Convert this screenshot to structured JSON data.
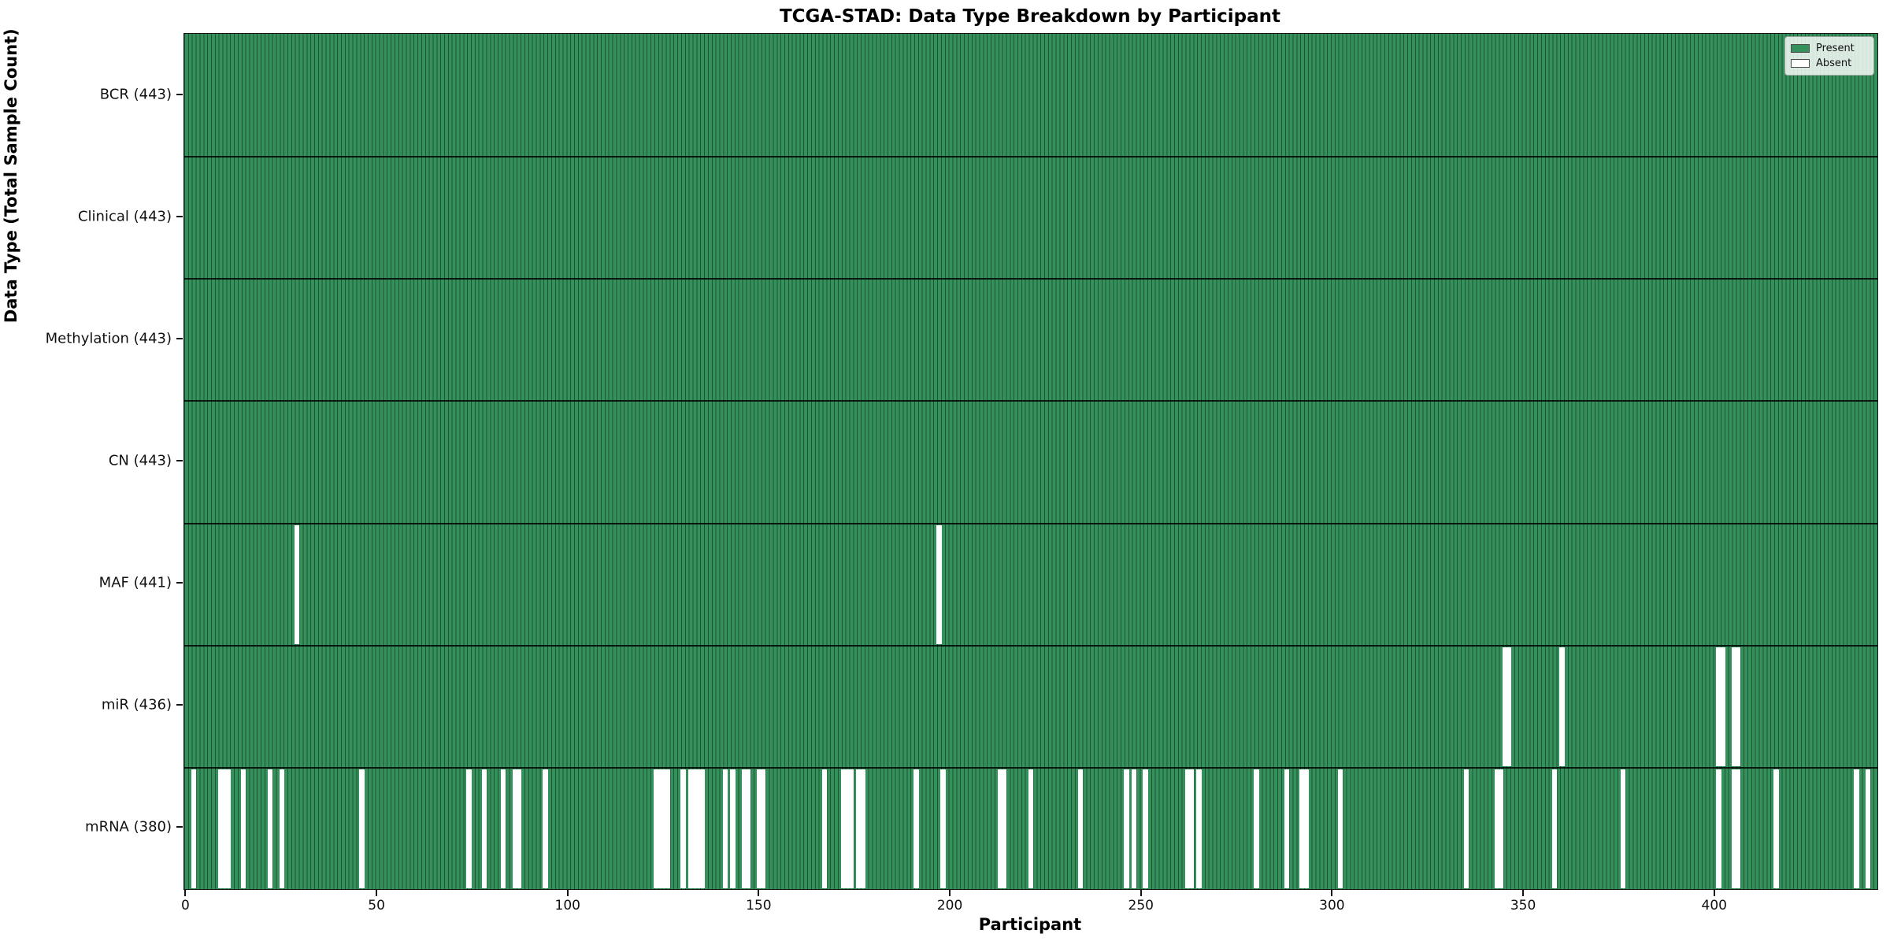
{
  "chart_data": {
    "type": "heatmap",
    "title": "TCGA-STAD: Data Type Breakdown by Participant",
    "xlabel": "Participant",
    "ylabel": "Data Type (Total Sample Count)",
    "n_participants": 443,
    "x_ticks": [
      0,
      50,
      100,
      150,
      200,
      250,
      300,
      350,
      400
    ],
    "legend": {
      "position": "upper-right",
      "entries": [
        {
          "label": "Present",
          "color": "#35915c"
        },
        {
          "label": "Absent",
          "color": "#ffffff"
        }
      ]
    },
    "colors": {
      "present": "#35915c",
      "absent": "#ffffff",
      "cell_edge": "rgba(0,0,0,0.42)",
      "row_separator": "#000000"
    },
    "rows": [
      {
        "name": "BCR",
        "label": "BCR (443)",
        "total": 443,
        "absent": []
      },
      {
        "name": "Clinical",
        "label": "Clinical (443)",
        "total": 443,
        "absent": []
      },
      {
        "name": "Methylation",
        "label": "Methylation (443)",
        "total": 443,
        "absent": []
      },
      {
        "name": "CN",
        "label": "CN (443)",
        "total": 443,
        "absent": []
      },
      {
        "name": "MAF",
        "label": "MAF (441)",
        "total": 441,
        "absent": [
          29,
          197
        ]
      },
      {
        "name": "miR",
        "label": "miR (436)",
        "total": 436,
        "absent": [
          345,
          346,
          360,
          401,
          402,
          405,
          406
        ]
      },
      {
        "name": "mRNA",
        "label": "mRNA (380)",
        "total": 380,
        "absent": [
          2,
          9,
          10,
          11,
          15,
          22,
          25,
          46,
          74,
          78,
          83,
          86,
          87,
          94,
          123,
          124,
          125,
          126,
          130,
          132,
          133,
          134,
          135,
          141,
          143,
          146,
          147,
          150,
          151,
          167,
          172,
          173,
          174,
          176,
          177,
          191,
          198,
          213,
          214,
          221,
          234,
          246,
          248,
          251,
          262,
          263,
          265,
          280,
          288,
          292,
          293,
          302,
          335,
          343,
          344,
          358,
          376,
          401,
          405,
          406,
          416,
          437,
          440
        ]
      }
    ]
  }
}
